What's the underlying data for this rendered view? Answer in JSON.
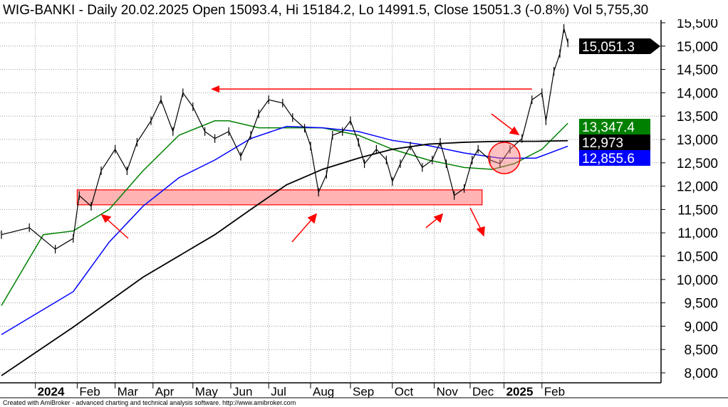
{
  "header": "WIG-BANKI - Daily 20.02.2025 Open 15093.4, Hi 15184.2, Lo 14991.5, Close 15051.3 (-0.8%) Vol 5,755,30",
  "footer": "Created with AmiBroker - advanced charting and technical analysis software. http://www.amibroker.com",
  "colors": {
    "price": "#000000",
    "ma_green": "#008000",
    "ma_blue": "#0000ff",
    "ma_black": "#000000",
    "annotation": "#ff0000",
    "zone_fill": "#ffb3b3"
  },
  "chart_data": {
    "type": "line",
    "title": "WIG-BANKI - Daily",
    "xlabel": "",
    "ylabel": "",
    "x_unit": "bar index (trading days)",
    "xlim": [
      0,
      331
    ],
    "ylim": [
      7800,
      15700
    ],
    "grid": true,
    "y_ticks": [
      8000,
      8500,
      9000,
      9500,
      10000,
      10500,
      11000,
      11500,
      12000,
      12500,
      13000,
      13500,
      14000,
      14500,
      15000,
      15500
    ],
    "y_tick_labels": [
      "8,000",
      "8,500",
      "9,000",
      "9,500",
      "10,000",
      "10,500",
      "11,000",
      "11,500",
      "12,000",
      "12,500",
      "13,000",
      "13,500",
      "14,000",
      "14,500",
      "15,000",
      "15,500"
    ],
    "x_ticks": [
      {
        "bar": 17,
        "label": "2024",
        "bold": true
      },
      {
        "bar": 38,
        "label": "Feb"
      },
      {
        "bar": 57,
        "label": "Mar"
      },
      {
        "bar": 76,
        "label": "Apr"
      },
      {
        "bar": 96,
        "label": "May"
      },
      {
        "bar": 115,
        "label": "Jun"
      },
      {
        "bar": 134,
        "label": "Jul"
      },
      {
        "bar": 155,
        "label": "Aug"
      },
      {
        "bar": 175,
        "label": "Sep"
      },
      {
        "bar": 196,
        "label": "Oct"
      },
      {
        "bar": 217,
        "label": "Nov"
      },
      {
        "bar": 235,
        "label": "Dec"
      },
      {
        "bar": 252,
        "label": "2025",
        "bold": true
      },
      {
        "bar": 271,
        "label": "Feb"
      }
    ],
    "series": [
      {
        "name": "Price",
        "color": "#000000",
        "width": 1.2,
        "points": [
          [
            0,
            10960
          ],
          [
            14,
            11110
          ],
          [
            27,
            10650
          ],
          [
            36,
            10880
          ],
          [
            39,
            11800
          ],
          [
            45,
            11570
          ],
          [
            50,
            12330
          ],
          [
            57,
            12790
          ],
          [
            63,
            12330
          ],
          [
            68,
            12940
          ],
          [
            75,
            13400
          ],
          [
            80,
            13850
          ],
          [
            86,
            13170
          ],
          [
            91,
            14000
          ],
          [
            96,
            13700
          ],
          [
            102,
            13170
          ],
          [
            107,
            13020
          ],
          [
            114,
            13170
          ],
          [
            120,
            12640
          ],
          [
            125,
            13090
          ],
          [
            129,
            13550
          ],
          [
            134,
            13850
          ],
          [
            141,
            13780
          ],
          [
            146,
            13470
          ],
          [
            152,
            13240
          ],
          [
            155,
            12860
          ],
          [
            159,
            11870
          ],
          [
            163,
            12250
          ],
          [
            166,
            13090
          ],
          [
            171,
            13170
          ],
          [
            175,
            13400
          ],
          [
            179,
            12940
          ],
          [
            182,
            12480
          ],
          [
            188,
            12790
          ],
          [
            193,
            12560
          ],
          [
            196,
            12100
          ],
          [
            200,
            12480
          ],
          [
            205,
            12860
          ],
          [
            211,
            12400
          ],
          [
            216,
            12560
          ],
          [
            220,
            12940
          ],
          [
            223,
            12480
          ],
          [
            227,
            11800
          ],
          [
            232,
            11950
          ],
          [
            236,
            12560
          ],
          [
            239,
            12790
          ],
          [
            245,
            12560
          ],
          [
            250,
            12480
          ],
          [
            255,
            12790
          ],
          [
            261,
            13020
          ],
          [
            266,
            13850
          ],
          [
            271,
            14000
          ],
          [
            273,
            13400
          ],
          [
            277,
            14460
          ],
          [
            280,
            14840
          ],
          [
            282,
            15380
          ],
          [
            284,
            15070
          ]
        ]
      },
      {
        "name": "MA green",
        "color": "#008000",
        "width": 1.5,
        "points": [
          [
            0,
            9440
          ],
          [
            21,
            10960
          ],
          [
            36,
            11040
          ],
          [
            54,
            11500
          ],
          [
            71,
            12330
          ],
          [
            89,
            13090
          ],
          [
            107,
            13400
          ],
          [
            114,
            13400
          ],
          [
            129,
            13250
          ],
          [
            143,
            13250
          ],
          [
            161,
            13250
          ],
          [
            179,
            13090
          ],
          [
            196,
            12790
          ],
          [
            214,
            12560
          ],
          [
            232,
            12400
          ],
          [
            246,
            12360
          ],
          [
            257,
            12480
          ],
          [
            271,
            12790
          ],
          [
            284,
            13347
          ]
        ]
      },
      {
        "name": "MA blue",
        "color": "#0000ff",
        "width": 1.5,
        "points": [
          [
            0,
            8820
          ],
          [
            36,
            9740
          ],
          [
            54,
            10800
          ],
          [
            71,
            11570
          ],
          [
            89,
            12180
          ],
          [
            107,
            12560
          ],
          [
            125,
            13020
          ],
          [
            143,
            13280
          ],
          [
            161,
            13250
          ],
          [
            179,
            13170
          ],
          [
            196,
            12980
          ],
          [
            214,
            12870
          ],
          [
            232,
            12710
          ],
          [
            250,
            12600
          ],
          [
            268,
            12600
          ],
          [
            284,
            12856
          ]
        ]
      },
      {
        "name": "MA black",
        "color": "#000000",
        "width": 1.8,
        "points": [
          [
            0,
            7940
          ],
          [
            36,
            8980
          ],
          [
            71,
            10050
          ],
          [
            107,
            10960
          ],
          [
            125,
            11500
          ],
          [
            143,
            12030
          ],
          [
            161,
            12360
          ],
          [
            179,
            12600
          ],
          [
            196,
            12790
          ],
          [
            214,
            12900
          ],
          [
            232,
            12940
          ],
          [
            250,
            12960
          ],
          [
            268,
            12960
          ],
          [
            284,
            12973
          ]
        ]
      }
    ],
    "value_tags": [
      {
        "label": "15,051.3",
        "value": 15051.3,
        "bg": "#000000",
        "arrow": true
      },
      {
        "label": "13,347.4",
        "value": 13347.4,
        "bg": "#008000"
      },
      {
        "label": "12,973",
        "value": 12973,
        "bg": "#000000"
      },
      {
        "label": "12,855.6",
        "value": 12855.6,
        "bg": "#0000ff"
      }
    ],
    "annotations": {
      "support_zone": {
        "bar_from": 38,
        "bar_to": 241,
        "price_from": 11600,
        "price_to": 11920
      },
      "resistance_arrow": {
        "bar_from": 266,
        "bar_to": 105,
        "price": 14080
      }
    }
  }
}
